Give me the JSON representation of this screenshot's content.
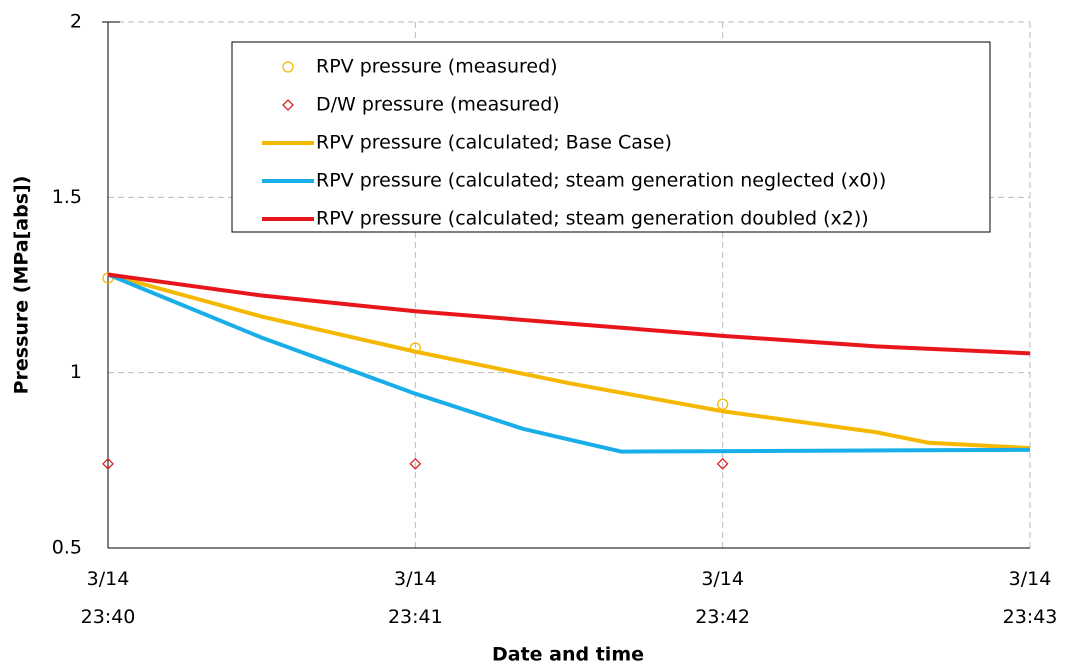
{
  "chart_data": {
    "type": "line",
    "xlabel": "Date and time",
    "ylabel": "Pressure (MPa[abs])",
    "xlim": [
      1420,
      1423
    ],
    "xticks": [
      {
        "value": 1420,
        "label": "3/14 23:40"
      },
      {
        "value": 1421,
        "label": "3/14 23:41"
      },
      {
        "value": 1422,
        "label": "3/14 23:42"
      },
      {
        "value": 1423,
        "label": "3/14 23:43"
      }
    ],
    "ylim": [
      0.5,
      2
    ],
    "yticks": [
      0.5,
      1,
      1.5,
      2
    ],
    "grid": true,
    "legend": "top",
    "series": [
      {
        "name": "RPV pressure (measured)",
        "color": "#f5b800",
        "marker": "circle",
        "x": [
          1420,
          1421,
          1422
        ],
        "values": [
          1.27,
          1.07,
          0.91
        ]
      },
      {
        "name": "D/W pressure (measured)",
        "color": "#e02020",
        "marker": "diamond",
        "x": [
          1420,
          1421,
          1422
        ],
        "values": [
          0.74,
          0.74,
          0.74
        ]
      },
      {
        "name": "RPV pressure (calculated; Base Case)",
        "color": "#f5b800",
        "x": [
          1420,
          1420.5,
          1421,
          1421.5,
          1422,
          1422.5,
          1422.67,
          1423
        ],
        "values": [
          1.28,
          1.16,
          1.06,
          0.97,
          0.89,
          0.83,
          0.8,
          0.785
        ]
      },
      {
        "name": "RPV pressure (calculated; steam generation neglected (x0))",
        "color": "#1aaee8",
        "x": [
          1420,
          1420.5,
          1421,
          1421.35,
          1421.67,
          1423
        ],
        "values": [
          1.28,
          1.1,
          0.94,
          0.84,
          0.775,
          0.78
        ]
      },
      {
        "name": "RPV pressure (calculated; steam generation doubled (x2))",
        "color": "#e8161c",
        "x": [
          1420,
          1420.5,
          1421,
          1421.5,
          1422,
          1422.5,
          1423
        ],
        "values": [
          1.28,
          1.22,
          1.175,
          1.14,
          1.105,
          1.075,
          1.055
        ]
      }
    ]
  }
}
